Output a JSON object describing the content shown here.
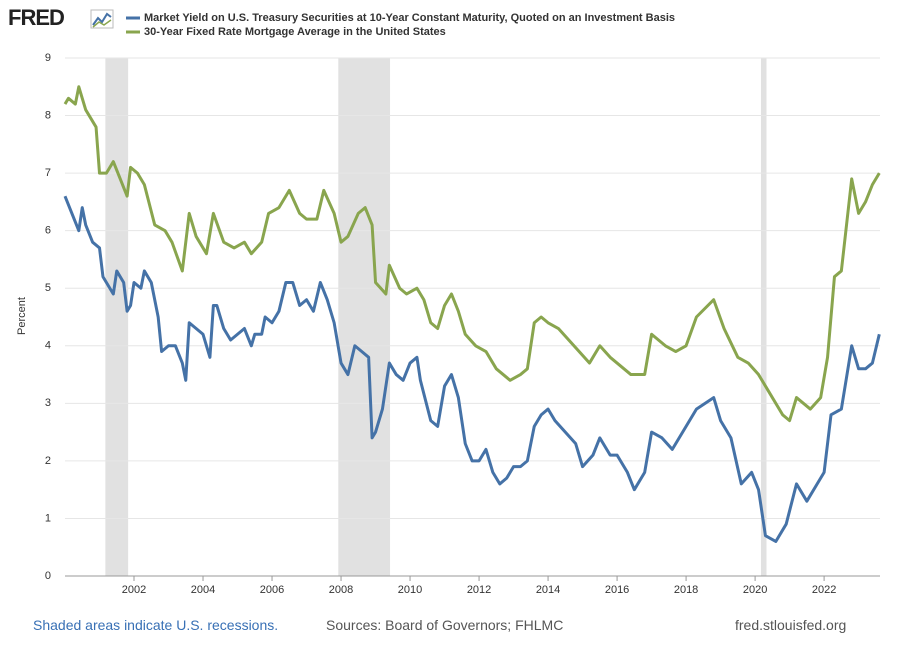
{
  "chart_data": {
    "type": "line",
    "logo": "FRED",
    "ylabel": "Percent",
    "xlim": [
      2000,
      2023.62
    ],
    "ylim": [
      0,
      9
    ],
    "xticks": [
      2002,
      2004,
      2006,
      2008,
      2010,
      2012,
      2014,
      2016,
      2018,
      2020,
      2022
    ],
    "yticks": [
      0,
      1,
      2,
      3,
      4,
      5,
      6,
      7,
      8,
      9
    ],
    "grid": true,
    "recession_color": "#e1e1e1",
    "recessions": [
      [
        2001.17,
        2001.83
      ],
      [
        2007.92,
        2009.42
      ],
      [
        2020.17,
        2020.33
      ]
    ],
    "series": [
      {
        "name": "Market Yield on U.S. Treasury Securities at 10-Year Constant Maturity, Quoted on an Investment Basis",
        "color": "#4572a7",
        "x": [
          2000.0,
          2000.2,
          2000.4,
          2000.5,
          2000.6,
          2000.8,
          2001.0,
          2001.1,
          2001.3,
          2001.4,
          2001.5,
          2001.7,
          2001.8,
          2001.9,
          2002.0,
          2002.2,
          2002.3,
          2002.5,
          2002.7,
          2002.8,
          2003.0,
          2003.2,
          2003.4,
          2003.5,
          2003.6,
          2003.8,
          2004.0,
          2004.2,
          2004.3,
          2004.4,
          2004.6,
          2004.8,
          2005.0,
          2005.2,
          2005.4,
          2005.5,
          2005.7,
          2005.8,
          2006.0,
          2006.2,
          2006.4,
          2006.6,
          2006.8,
          2007.0,
          2007.2,
          2007.4,
          2007.6,
          2007.8,
          2008.0,
          2008.2,
          2008.4,
          2008.6,
          2008.8,
          2008.9,
          2009.0,
          2009.2,
          2009.4,
          2009.6,
          2009.8,
          2010.0,
          2010.2,
          2010.3,
          2010.6,
          2010.8,
          2011.0,
          2011.2,
          2011.4,
          2011.6,
          2011.8,
          2012.0,
          2012.2,
          2012.4,
          2012.6,
          2012.8,
          2013.0,
          2013.2,
          2013.4,
          2013.6,
          2013.8,
          2014.0,
          2014.2,
          2014.5,
          2014.8,
          2015.0,
          2015.3,
          2015.5,
          2015.8,
          2016.0,
          2016.3,
          2016.5,
          2016.8,
          2017.0,
          2017.3,
          2017.6,
          2018.0,
          2018.3,
          2018.8,
          2019.0,
          2019.3,
          2019.6,
          2019.9,
          2020.1,
          2020.3,
          2020.6,
          2020.9,
          2021.2,
          2021.5,
          2021.8,
          2022.0,
          2022.2,
          2022.5,
          2022.8,
          2023.0,
          2023.2,
          2023.4,
          2023.6
        ],
        "values": [
          6.6,
          6.3,
          6.0,
          6.4,
          6.1,
          5.8,
          5.7,
          5.2,
          5.0,
          4.9,
          5.3,
          5.1,
          4.6,
          4.7,
          5.1,
          5.0,
          5.3,
          5.1,
          4.5,
          3.9,
          4.0,
          4.0,
          3.7,
          3.4,
          4.4,
          4.3,
          4.2,
          3.8,
          4.7,
          4.7,
          4.3,
          4.1,
          4.2,
          4.3,
          4.0,
          4.2,
          4.2,
          4.5,
          4.4,
          4.6,
          5.1,
          5.1,
          4.7,
          4.8,
          4.6,
          5.1,
          4.8,
          4.4,
          3.7,
          3.5,
          4.0,
          3.9,
          3.8,
          2.4,
          2.5,
          2.9,
          3.7,
          3.5,
          3.4,
          3.7,
          3.8,
          3.4,
          2.7,
          2.6,
          3.3,
          3.5,
          3.1,
          2.3,
          2.0,
          2.0,
          2.2,
          1.8,
          1.6,
          1.7,
          1.9,
          1.9,
          2.0,
          2.6,
          2.8,
          2.9,
          2.7,
          2.5,
          2.3,
          1.9,
          2.1,
          2.4,
          2.1,
          2.1,
          1.8,
          1.5,
          1.8,
          2.5,
          2.4,
          2.2,
          2.6,
          2.9,
          3.1,
          2.7,
          2.4,
          1.6,
          1.8,
          1.5,
          0.7,
          0.6,
          0.9,
          1.6,
          1.3,
          1.6,
          1.8,
          2.8,
          2.9,
          4.0,
          3.6,
          3.6,
          3.7,
          4.2
        ]
      },
      {
        "name": "30-Year Fixed Rate Mortgage Average in the United States",
        "color": "#89a54e",
        "x": [
          2000.0,
          2000.1,
          2000.3,
          2000.4,
          2000.6,
          2000.9,
          2001.0,
          2001.2,
          2001.4,
          2001.6,
          2001.8,
          2001.9,
          2002.1,
          2002.3,
          2002.6,
          2002.9,
          2003.1,
          2003.4,
          2003.6,
          2003.8,
          2004.1,
          2004.3,
          2004.6,
          2004.9,
          2005.2,
          2005.4,
          2005.7,
          2005.9,
          2006.2,
          2006.5,
          2006.8,
          2007.0,
          2007.3,
          2007.5,
          2007.8,
          2008.0,
          2008.2,
          2008.5,
          2008.7,
          2008.9,
          2009.0,
          2009.3,
          2009.4,
          2009.7,
          2009.9,
          2010.2,
          2010.4,
          2010.6,
          2010.8,
          2011.0,
          2011.2,
          2011.4,
          2011.6,
          2011.9,
          2012.2,
          2012.5,
          2012.9,
          2013.2,
          2013.4,
          2013.6,
          2013.8,
          2014.0,
          2014.3,
          2014.6,
          2014.9,
          2015.2,
          2015.5,
          2015.8,
          2016.0,
          2016.4,
          2016.8,
          2017.0,
          2017.4,
          2017.7,
          2018.0,
          2018.3,
          2018.8,
          2019.1,
          2019.5,
          2019.8,
          2020.1,
          2020.4,
          2020.8,
          2021.0,
          2021.2,
          2021.6,
          2021.9,
          2022.1,
          2022.3,
          2022.5,
          2022.8,
          2023.0,
          2023.2,
          2023.4,
          2023.6
        ],
        "values": [
          8.2,
          8.3,
          8.2,
          8.5,
          8.1,
          7.8,
          7.0,
          7.0,
          7.2,
          6.9,
          6.6,
          7.1,
          7.0,
          6.8,
          6.1,
          6.0,
          5.8,
          5.3,
          6.3,
          5.9,
          5.6,
          6.3,
          5.8,
          5.7,
          5.8,
          5.6,
          5.8,
          6.3,
          6.4,
          6.7,
          6.3,
          6.2,
          6.2,
          6.7,
          6.3,
          5.8,
          5.9,
          6.3,
          6.4,
          6.1,
          5.1,
          4.9,
          5.4,
          5.0,
          4.9,
          5.0,
          4.8,
          4.4,
          4.3,
          4.7,
          4.9,
          4.6,
          4.2,
          4.0,
          3.9,
          3.6,
          3.4,
          3.5,
          3.6,
          4.4,
          4.5,
          4.4,
          4.3,
          4.1,
          3.9,
          3.7,
          4.0,
          3.8,
          3.7,
          3.5,
          3.5,
          4.2,
          4.0,
          3.9,
          4.0,
          4.5,
          4.8,
          4.3,
          3.8,
          3.7,
          3.5,
          3.2,
          2.8,
          2.7,
          3.1,
          2.9,
          3.1,
          3.8,
          5.2,
          5.3,
          6.9,
          6.3,
          6.5,
          6.8,
          7.0
        ]
      }
    ],
    "note": "Shaded areas indicate U.S. recessions.",
    "sources": "Sources: Board of Governors; FHLMC",
    "site": "fred.stlouisfed.org"
  }
}
